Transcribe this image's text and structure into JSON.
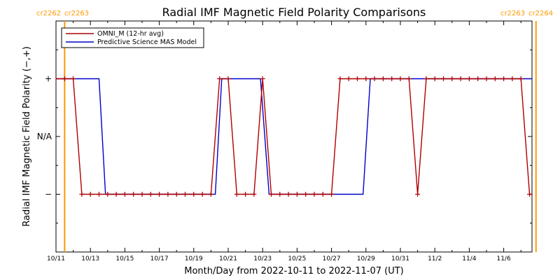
{
  "chart_data": {
    "type": "line",
    "title": "Radial IMF Magnetic Field Polarity Comparisons",
    "xlabel": "Month/Day from 2022-10-11 to 2022-11-07 (UT)",
    "ylabel": "Radial IMF Magnetic Field Polarity (−,+)",
    "x_start": "2022-10-11",
    "x_end": "2022-11-07",
    "x_ticks": [
      "10/11",
      "10/13",
      "10/15",
      "10/17",
      "10/19",
      "10/21",
      "10/23",
      "10/25",
      "10/27",
      "10/29",
      "10/31",
      "11/2",
      "11/4",
      "11/6"
    ],
    "y_ticks": [
      "+",
      "N/A",
      "−"
    ],
    "y_tick_values": [
      1,
      0,
      -1
    ],
    "ylim": [
      -2,
      2
    ],
    "carrington_markers": [
      {
        "left_label": "cr2262",
        "right_label": "cr2263",
        "date": "2022-10-11 12:00"
      },
      {
        "left_label": "cr2263",
        "right_label": "cr2264",
        "date": "2022-11-07 21:00"
      }
    ],
    "series": [
      {
        "name": "OMNI_M (12-hr avg)",
        "color": "#b00000",
        "markers": true,
        "points": [
          [
            "2022-10-11 00:00",
            1
          ],
          [
            "2022-10-11 12:00",
            1
          ],
          [
            "2022-10-12 00:00",
            1
          ],
          [
            "2022-10-12 12:00",
            -1
          ],
          [
            "2022-10-13 00:00",
            -1
          ],
          [
            "2022-10-13 12:00",
            -1
          ],
          [
            "2022-10-14 00:00",
            -1
          ],
          [
            "2022-10-14 12:00",
            -1
          ],
          [
            "2022-10-15 00:00",
            -1
          ],
          [
            "2022-10-15 12:00",
            -1
          ],
          [
            "2022-10-16 00:00",
            -1
          ],
          [
            "2022-10-16 12:00",
            -1
          ],
          [
            "2022-10-17 00:00",
            -1
          ],
          [
            "2022-10-17 12:00",
            -1
          ],
          [
            "2022-10-18 00:00",
            -1
          ],
          [
            "2022-10-18 12:00",
            -1
          ],
          [
            "2022-10-19 00:00",
            -1
          ],
          [
            "2022-10-19 12:00",
            -1
          ],
          [
            "2022-10-20 00:00",
            -1
          ],
          [
            "2022-10-20 12:00",
            1
          ],
          [
            "2022-10-21 00:00",
            1
          ],
          [
            "2022-10-21 12:00",
            -1
          ],
          [
            "2022-10-22 00:00",
            -1
          ],
          [
            "2022-10-22 12:00",
            -1
          ],
          [
            "2022-10-23 00:00",
            1
          ],
          [
            "2022-10-23 12:00",
            -1
          ],
          [
            "2022-10-24 00:00",
            -1
          ],
          [
            "2022-10-24 12:00",
            -1
          ],
          [
            "2022-10-25 00:00",
            -1
          ],
          [
            "2022-10-25 12:00",
            -1
          ],
          [
            "2022-10-26 00:00",
            -1
          ],
          [
            "2022-10-26 12:00",
            -1
          ],
          [
            "2022-10-27 00:00",
            -1
          ],
          [
            "2022-10-27 12:00",
            1
          ],
          [
            "2022-10-28 00:00",
            1
          ],
          [
            "2022-10-28 12:00",
            1
          ],
          [
            "2022-10-29 00:00",
            1
          ],
          [
            "2022-10-29 12:00",
            1
          ],
          [
            "2022-10-30 00:00",
            1
          ],
          [
            "2022-10-30 12:00",
            1
          ],
          [
            "2022-10-31 00:00",
            1
          ],
          [
            "2022-10-31 12:00",
            1
          ],
          [
            "2022-11-01 00:00",
            -1
          ],
          [
            "2022-11-01 12:00",
            1
          ],
          [
            "2022-11-02 00:00",
            1
          ],
          [
            "2022-11-02 12:00",
            1
          ],
          [
            "2022-11-03 00:00",
            1
          ],
          [
            "2022-11-03 12:00",
            1
          ],
          [
            "2022-11-04 00:00",
            1
          ],
          [
            "2022-11-04 12:00",
            1
          ],
          [
            "2022-11-05 00:00",
            1
          ],
          [
            "2022-11-05 12:00",
            1
          ],
          [
            "2022-11-06 00:00",
            1
          ],
          [
            "2022-11-06 12:00",
            1
          ],
          [
            "2022-11-07 00:00",
            1
          ],
          [
            "2022-11-07 12:00",
            -1
          ],
          [
            "2022-11-08 00:00",
            -1
          ]
        ]
      },
      {
        "name": "Predictive Science MAS Model",
        "color": "#0000cc",
        "markers": false,
        "points": [
          [
            "2022-10-11 00:00",
            1
          ],
          [
            "2022-10-13 12:00",
            1
          ],
          [
            "2022-10-13 21:00",
            -1
          ],
          [
            "2022-10-20 06:00",
            -1
          ],
          [
            "2022-10-20 15:00",
            1
          ],
          [
            "2022-10-22 21:00",
            1
          ],
          [
            "2022-10-23 09:00",
            -1
          ],
          [
            "2022-10-28 20:00",
            -1
          ],
          [
            "2022-10-29 06:00",
            1
          ],
          [
            "2022-11-08 00:00",
            1
          ]
        ]
      }
    ],
    "legend": "top-left"
  }
}
